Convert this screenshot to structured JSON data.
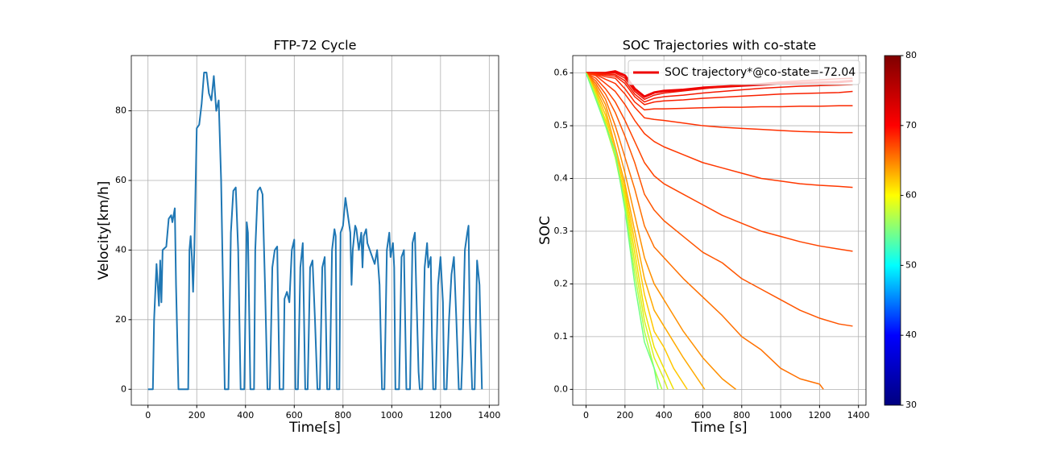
{
  "chart_data": [
    {
      "type": "line",
      "title": "FTP-72 Cycle",
      "xlabel": "Time[s]",
      "ylabel": "Velocity[km/h]",
      "grid": true,
      "xlim": [
        -68.5,
        1438.5
      ],
      "ylim": [
        -4.57,
        95.87
      ],
      "xticks": [
        0,
        200,
        400,
        600,
        800,
        1000,
        1200,
        1400
      ],
      "yticks": [
        0,
        20,
        40,
        60,
        80
      ],
      "x": [
        0,
        20,
        25,
        35,
        45,
        50,
        55,
        60,
        75,
        85,
        95,
        100,
        105,
        110,
        115,
        125,
        165,
        170,
        175,
        180,
        185,
        190,
        200,
        210,
        220,
        230,
        240,
        250,
        260,
        270,
        280,
        290,
        300,
        305,
        315,
        330,
        340,
        350,
        360,
        370,
        380,
        395,
        405,
        410,
        420,
        435,
        440,
        450,
        460,
        470,
        480,
        490,
        500,
        510,
        520,
        530,
        540,
        555,
        560,
        570,
        580,
        590,
        600,
        605,
        615,
        625,
        635,
        645,
        655,
        665,
        675,
        685,
        695,
        705,
        715,
        725,
        735,
        745,
        755,
        765,
        770,
        775,
        785,
        790,
        800,
        810,
        820,
        830,
        835,
        840,
        850,
        855,
        865,
        875,
        880,
        885,
        895,
        900,
        910,
        920,
        930,
        940,
        950,
        960,
        970,
        980,
        990,
        995,
        1005,
        1010,
        1015,
        1030,
        1040,
        1050,
        1060,
        1075,
        1085,
        1095,
        1100,
        1110,
        1115,
        1125,
        1135,
        1145,
        1150,
        1160,
        1165,
        1170,
        1180,
        1190,
        1200,
        1210,
        1215,
        1225,
        1235,
        1245,
        1255,
        1265,
        1275,
        1285,
        1290,
        1300,
        1310,
        1315,
        1320,
        1330,
        1340,
        1350,
        1360,
        1370
      ],
      "series": [
        {
          "color": "#1f77b4",
          "linewidth": 2,
          "values": [
            0,
            0,
            20,
            36,
            24,
            37,
            25,
            40,
            41,
            49,
            50,
            48,
            50,
            52,
            30,
            0,
            0,
            40,
            44,
            38,
            28,
            40,
            75,
            76,
            82,
            91,
            91,
            85,
            83,
            90,
            80,
            83,
            60,
            40,
            0,
            0,
            45,
            57,
            58,
            40,
            0,
            0,
            48,
            45,
            0,
            0,
            40,
            57,
            58,
            56,
            30,
            0,
            0,
            35,
            40,
            41,
            0,
            0,
            26,
            28,
            25,
            40,
            43,
            0,
            0,
            35,
            42,
            0,
            0,
            35,
            37,
            20,
            0,
            0,
            35,
            38,
            0,
            0,
            40,
            46,
            44,
            0,
            0,
            45,
            47,
            55,
            50,
            45,
            30,
            40,
            47,
            46,
            40,
            45,
            35,
            44,
            46,
            42,
            40,
            38,
            36,
            40,
            30,
            0,
            0,
            40,
            45,
            38,
            42,
            35,
            0,
            0,
            38,
            40,
            0,
            0,
            42,
            45,
            30,
            5,
            0,
            0,
            35,
            42,
            35,
            38,
            15,
            0,
            0,
            30,
            38,
            25,
            0,
            0,
            20,
            33,
            38,
            20,
            0,
            0,
            10,
            40,
            45,
            47,
            20,
            0,
            0,
            37,
            30,
            0
          ]
        }
      ]
    },
    {
      "type": "line",
      "title": "SOC Trajectories with co-state",
      "xlabel": "Time [s]",
      "ylabel": "SOC",
      "grid": true,
      "xlim": [
        -68.5,
        1438.5
      ],
      "ylim": [
        -0.03,
        0.633
      ],
      "xticks": [
        0,
        200,
        400,
        600,
        800,
        1000,
        1200,
        1400
      ],
      "yticks": [
        {
          "value": 0,
          "label": "0.0"
        },
        0.1,
        0.2,
        0.3,
        0.4,
        0.5,
        0.6
      ],
      "legend": "upper right",
      "colorbar": {
        "lim": [
          30,
          80
        ],
        "ticks": [
          30,
          40,
          50,
          60,
          70,
          80
        ],
        "colors": [
          "#00007f",
          "#0000ff",
          "#00ffff",
          "#ffff00",
          "#ff0000",
          "#7f0000"
        ]
      },
      "series": [
        {
          "name": "SOC trajectory*@co-state=-72.04",
          "color": "#ee0000",
          "linewidth": 3,
          "x": [
            0,
            50,
            100,
            150,
            200,
            250,
            300,
            350,
            400,
            500,
            600,
            700,
            800,
            900,
            1000,
            1100,
            1200,
            1300,
            1370
          ],
          "values": [
            0.6,
            0.6,
            0.6,
            0.603,
            0.595,
            0.57,
            0.555,
            0.563,
            0.566,
            0.568,
            0.572,
            0.574,
            0.576,
            0.578,
            0.58,
            0.581,
            0.582,
            0.583,
            0.585
          ]
        },
        {
          "color": "#f01000",
          "linewidth": 1.5,
          "x": [
            0,
            50,
            100,
            150,
            200,
            250,
            300,
            350,
            400,
            500,
            600,
            700,
            800,
            900,
            1000,
            1100,
            1200,
            1300,
            1370
          ],
          "values": [
            0.6,
            0.6,
            0.6,
            0.6,
            0.59,
            0.565,
            0.55,
            0.558,
            0.562,
            0.566,
            0.57,
            0.574,
            0.577,
            0.58,
            0.583,
            0.585,
            0.587,
            0.589,
            0.59
          ]
        },
        {
          "color": "#f51800",
          "linewidth": 1.5,
          "x": [
            0,
            50,
            100,
            150,
            200,
            250,
            300,
            350,
            400,
            500,
            600,
            700,
            800,
            900,
            1000,
            1100,
            1200,
            1300,
            1370
          ],
          "values": [
            0.6,
            0.6,
            0.598,
            0.597,
            0.585,
            0.56,
            0.545,
            0.552,
            0.555,
            0.558,
            0.562,
            0.565,
            0.568,
            0.571,
            0.573,
            0.575,
            0.576,
            0.577,
            0.578
          ]
        },
        {
          "color": "#f82000",
          "linewidth": 1.5,
          "x": [
            0,
            50,
            100,
            150,
            200,
            250,
            300,
            350,
            400,
            500,
            600,
            700,
            800,
            900,
            1000,
            1100,
            1200,
            1300,
            1370
          ],
          "values": [
            0.6,
            0.599,
            0.596,
            0.594,
            0.58,
            0.555,
            0.54,
            0.545,
            0.547,
            0.549,
            0.552,
            0.554,
            0.556,
            0.558,
            0.56,
            0.561,
            0.562,
            0.563,
            0.565
          ]
        },
        {
          "color": "#fa2800",
          "linewidth": 1.5,
          "x": [
            0,
            50,
            100,
            150,
            200,
            250,
            300,
            350,
            400,
            500,
            600,
            700,
            800,
            900,
            1000,
            1100,
            1200,
            1300,
            1370
          ],
          "values": [
            0.6,
            0.598,
            0.593,
            0.59,
            0.57,
            0.545,
            0.53,
            0.532,
            0.532,
            0.533,
            0.534,
            0.535,
            0.535,
            0.536,
            0.536,
            0.537,
            0.537,
            0.538,
            0.538
          ]
        },
        {
          "color": "#ff3000",
          "linewidth": 1.5,
          "x": [
            0,
            50,
            100,
            150,
            200,
            250,
            300,
            350,
            400,
            500,
            600,
            700,
            800,
            900,
            1000,
            1100,
            1200,
            1300,
            1370
          ],
          "values": [
            0.6,
            0.597,
            0.588,
            0.58,
            0.56,
            0.535,
            0.515,
            0.512,
            0.51,
            0.505,
            0.5,
            0.497,
            0.495,
            0.493,
            0.491,
            0.489,
            0.488,
            0.487,
            0.487
          ]
        },
        {
          "color": "#ff3800",
          "linewidth": 1.5,
          "x": [
            0,
            50,
            100,
            150,
            200,
            250,
            300,
            350,
            400,
            500,
            600,
            700,
            800,
            900,
            1000,
            1100,
            1200,
            1300,
            1370
          ],
          "values": [
            0.6,
            0.595,
            0.58,
            0.565,
            0.54,
            0.51,
            0.485,
            0.47,
            0.46,
            0.445,
            0.43,
            0.42,
            0.41,
            0.4,
            0.395,
            0.39,
            0.387,
            0.385,
            0.383
          ]
        },
        {
          "color": "#ff4400",
          "linewidth": 1.5,
          "x": [
            0,
            50,
            100,
            150,
            200,
            250,
            300,
            350,
            400,
            500,
            600,
            700,
            800,
            900,
            1000,
            1100,
            1200,
            1300,
            1370
          ],
          "values": [
            0.6,
            0.59,
            0.57,
            0.545,
            0.51,
            0.47,
            0.43,
            0.405,
            0.39,
            0.37,
            0.35,
            0.33,
            0.315,
            0.3,
            0.29,
            0.28,
            0.272,
            0.266,
            0.262
          ]
        },
        {
          "color": "#ff5500",
          "linewidth": 1.5,
          "x": [
            0,
            50,
            100,
            150,
            200,
            250,
            300,
            350,
            400,
            500,
            600,
            700,
            800,
            900,
            1000,
            1100,
            1200,
            1300,
            1370
          ],
          "values": [
            0.6,
            0.585,
            0.56,
            0.525,
            0.48,
            0.43,
            0.37,
            0.34,
            0.32,
            0.29,
            0.26,
            0.24,
            0.21,
            0.19,
            0.17,
            0.15,
            0.135,
            0.124,
            0.12
          ]
        },
        {
          "color": "#ff7000",
          "linewidth": 1.5,
          "x": [
            0,
            50,
            100,
            150,
            200,
            250,
            300,
            350,
            400,
            500,
            600,
            700,
            800,
            900,
            1000,
            1100,
            1200,
            1220
          ],
          "values": [
            0.6,
            0.58,
            0.55,
            0.5,
            0.44,
            0.38,
            0.31,
            0.27,
            0.25,
            0.21,
            0.175,
            0.14,
            0.1,
            0.075,
            0.04,
            0.02,
            0.01,
            0.0
          ]
        },
        {
          "color": "#ff9000",
          "linewidth": 1.5,
          "x": [
            0,
            50,
            100,
            150,
            200,
            250,
            300,
            350,
            400,
            500,
            600,
            700,
            770
          ],
          "values": [
            0.6,
            0.575,
            0.54,
            0.48,
            0.41,
            0.33,
            0.25,
            0.2,
            0.17,
            0.11,
            0.06,
            0.02,
            0.0
          ]
        },
        {
          "color": "#ffaa00",
          "linewidth": 1.5,
          "x": [
            0,
            50,
            100,
            150,
            200,
            250,
            300,
            350,
            400,
            500,
            610
          ],
          "values": [
            0.6,
            0.57,
            0.53,
            0.46,
            0.39,
            0.3,
            0.21,
            0.15,
            0.12,
            0.06,
            0.0
          ]
        },
        {
          "color": "#ffc800",
          "linewidth": 1.5,
          "x": [
            0,
            50,
            100,
            150,
            200,
            250,
            300,
            350,
            400,
            450,
            520
          ],
          "values": [
            0.6,
            0.565,
            0.52,
            0.45,
            0.38,
            0.28,
            0.18,
            0.11,
            0.08,
            0.04,
            0.0
          ]
        },
        {
          "color": "#f0e000",
          "linewidth": 1.5,
          "x": [
            0,
            50,
            100,
            150,
            200,
            250,
            300,
            350,
            400,
            450
          ],
          "values": [
            0.6,
            0.56,
            0.51,
            0.44,
            0.37,
            0.26,
            0.15,
            0.08,
            0.04,
            0.0
          ]
        },
        {
          "color": "#d8f020",
          "linewidth": 1.5,
          "x": [
            0,
            50,
            100,
            150,
            200,
            250,
            300,
            350,
            400,
            420
          ],
          "values": [
            0.6,
            0.56,
            0.505,
            0.44,
            0.36,
            0.24,
            0.13,
            0.06,
            0.02,
            0.0
          ]
        },
        {
          "color": "#b0ff40",
          "linewidth": 1.5,
          "x": [
            0,
            50,
            100,
            150,
            200,
            250,
            300,
            350,
            390
          ],
          "values": [
            0.6,
            0.555,
            0.5,
            0.44,
            0.35,
            0.22,
            0.11,
            0.04,
            0.0
          ]
        },
        {
          "color": "#70ff80",
          "linewidth": 1.5,
          "x": [
            0,
            50,
            100,
            150,
            200,
            250,
            300,
            350,
            370
          ],
          "values": [
            0.6,
            0.55,
            0.5,
            0.45,
            0.34,
            0.2,
            0.09,
            0.04,
            0.0
          ]
        }
      ]
    }
  ]
}
